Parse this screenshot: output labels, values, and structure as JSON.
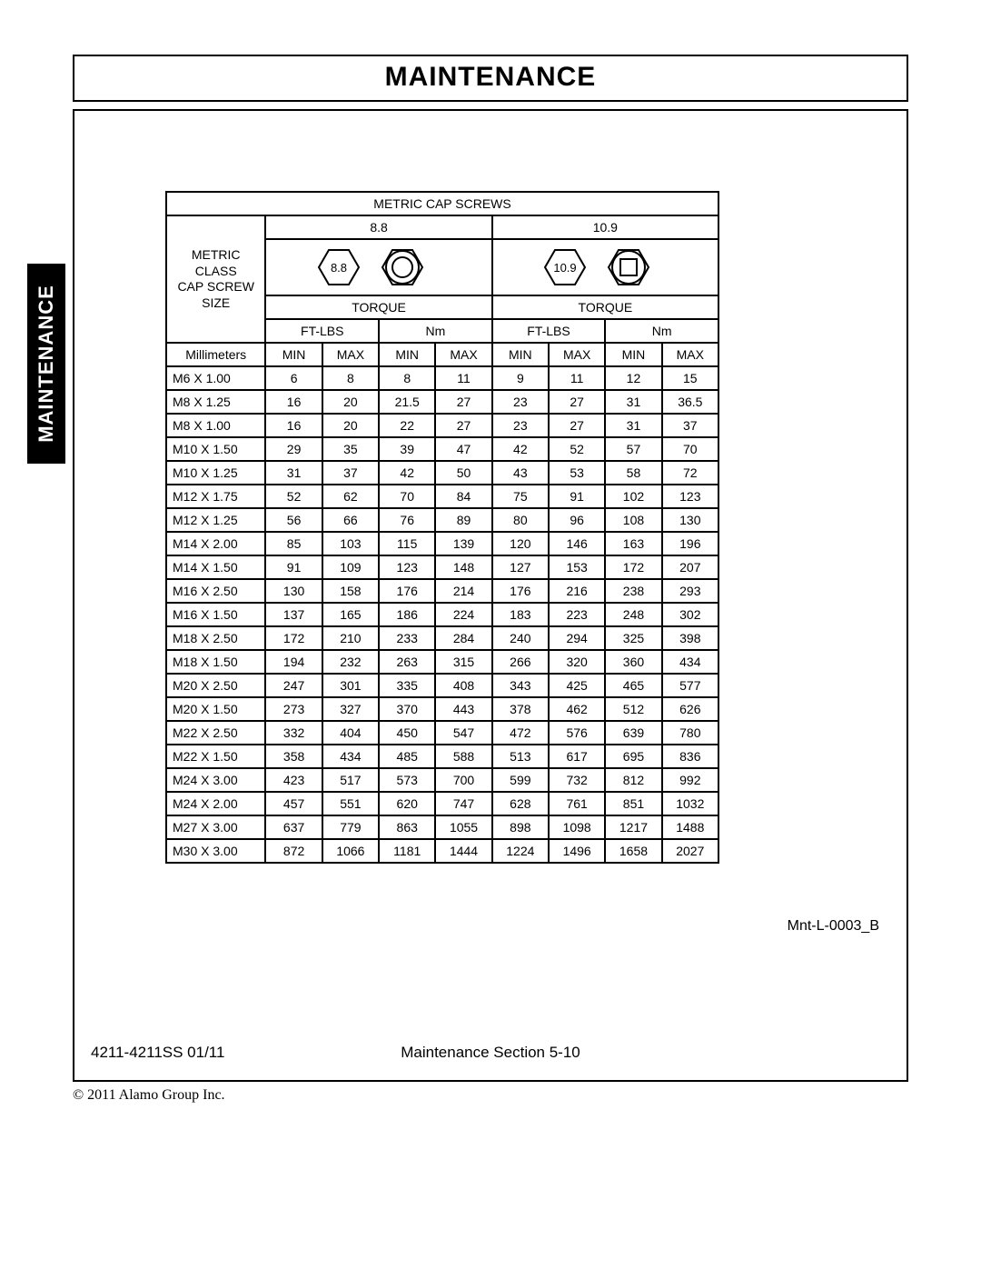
{
  "page": {
    "background_color": "#ffffff",
    "border_color": "#000000",
    "text_color": "#000000"
  },
  "header": {
    "title": "MAINTENANCE"
  },
  "side_tab": {
    "label": "MAINTENANCE",
    "bg": "#000000",
    "fg": "#ffffff"
  },
  "table": {
    "title": "METRIC CAP SCREWS",
    "side_label_line1": "METRIC CLASS",
    "side_label_line2": "CAP SCREW",
    "side_label_line3": "SIZE",
    "torque_label": "TORQUE",
    "unit_ftlbs": "FT-LBS",
    "unit_nm": "Nm",
    "mm_label": "Millimeters",
    "min_label": "MIN",
    "max_label": "MAX",
    "classes": [
      {
        "label": "8.8",
        "hex_text": "8.8"
      },
      {
        "label": "10.9",
        "hex_text": "10.9"
      }
    ],
    "columns": [
      "size",
      "c0_ft_min",
      "c0_ft_max",
      "c0_nm_min",
      "c0_nm_max",
      "c1_ft_min",
      "c1_ft_max",
      "c1_nm_min",
      "c1_nm_max"
    ],
    "col_widths_pct": [
      18,
      10.25,
      10.25,
      10.25,
      10.25,
      10.25,
      10.25,
      10.25,
      10.25
    ],
    "rows": [
      {
        "size": "M6 X 1.00",
        "v": [
          "6",
          "8",
          "8",
          "11",
          "9",
          "11",
          "12",
          "15"
        ]
      },
      {
        "size": "M8 X 1.25",
        "v": [
          "16",
          "20",
          "21.5",
          "27",
          "23",
          "27",
          "31",
          "36.5"
        ]
      },
      {
        "size": "M8 X 1.00",
        "v": [
          "16",
          "20",
          "22",
          "27",
          "23",
          "27",
          "31",
          "37"
        ]
      },
      {
        "size": "M10 X 1.50",
        "v": [
          "29",
          "35",
          "39",
          "47",
          "42",
          "52",
          "57",
          "70"
        ]
      },
      {
        "size": "M10 X 1.25",
        "v": [
          "31",
          "37",
          "42",
          "50",
          "43",
          "53",
          "58",
          "72"
        ]
      },
      {
        "size": "M12 X 1.75",
        "v": [
          "52",
          "62",
          "70",
          "84",
          "75",
          "91",
          "102",
          "123"
        ]
      },
      {
        "size": "M12 X 1.25",
        "v": [
          "56",
          "66",
          "76",
          "89",
          "80",
          "96",
          "108",
          "130"
        ]
      },
      {
        "size": "M14 X 2.00",
        "v": [
          "85",
          "103",
          "115",
          "139",
          "120",
          "146",
          "163",
          "196"
        ]
      },
      {
        "size": "M14 X 1.50",
        "v": [
          "91",
          "109",
          "123",
          "148",
          "127",
          "153",
          "172",
          "207"
        ]
      },
      {
        "size": "M16 X 2.50",
        "v": [
          "130",
          "158",
          "176",
          "214",
          "176",
          "216",
          "238",
          "293"
        ]
      },
      {
        "size": "M16 X 1.50",
        "v": [
          "137",
          "165",
          "186",
          "224",
          "183",
          "223",
          "248",
          "302"
        ]
      },
      {
        "size": "M18 X 2.50",
        "v": [
          "172",
          "210",
          "233",
          "284",
          "240",
          "294",
          "325",
          "398"
        ]
      },
      {
        "size": "M18 X 1.50",
        "v": [
          "194",
          "232",
          "263",
          "315",
          "266",
          "320",
          "360",
          "434"
        ]
      },
      {
        "size": "M20 X 2.50",
        "v": [
          "247",
          "301",
          "335",
          "408",
          "343",
          "425",
          "465",
          "577"
        ]
      },
      {
        "size": "M20 X 1.50",
        "v": [
          "273",
          "327",
          "370",
          "443",
          "378",
          "462",
          "512",
          "626"
        ]
      },
      {
        "size": "M22 X 2.50",
        "v": [
          "332",
          "404",
          "450",
          "547",
          "472",
          "576",
          "639",
          "780"
        ]
      },
      {
        "size": "M22 X 1.50",
        "v": [
          "358",
          "434",
          "485",
          "588",
          "513",
          "617",
          "695",
          "836"
        ]
      },
      {
        "size": "M24 X 3.00",
        "v": [
          "423",
          "517",
          "573",
          "700",
          "599",
          "732",
          "812",
          "992"
        ]
      },
      {
        "size": "M24 X 2.00",
        "v": [
          "457",
          "551",
          "620",
          "747",
          "628",
          "761",
          "851",
          "1032"
        ]
      },
      {
        "size": "M27 X 3.00",
        "v": [
          "637",
          "779",
          "863",
          "1055",
          "898",
          "1098",
          "1217",
          "1488"
        ]
      },
      {
        "size": "M30 X 3.00",
        "v": [
          "872",
          "1066",
          "1181",
          "1444",
          "1224",
          "1496",
          "1658",
          "2027"
        ]
      }
    ]
  },
  "figure_ref": "Mnt-L-0003_B",
  "footer": {
    "left": "4211-4211SS   01/11",
    "center": "Maintenance Section 5-10"
  },
  "copyright": "© 2011 Alamo Group Inc."
}
